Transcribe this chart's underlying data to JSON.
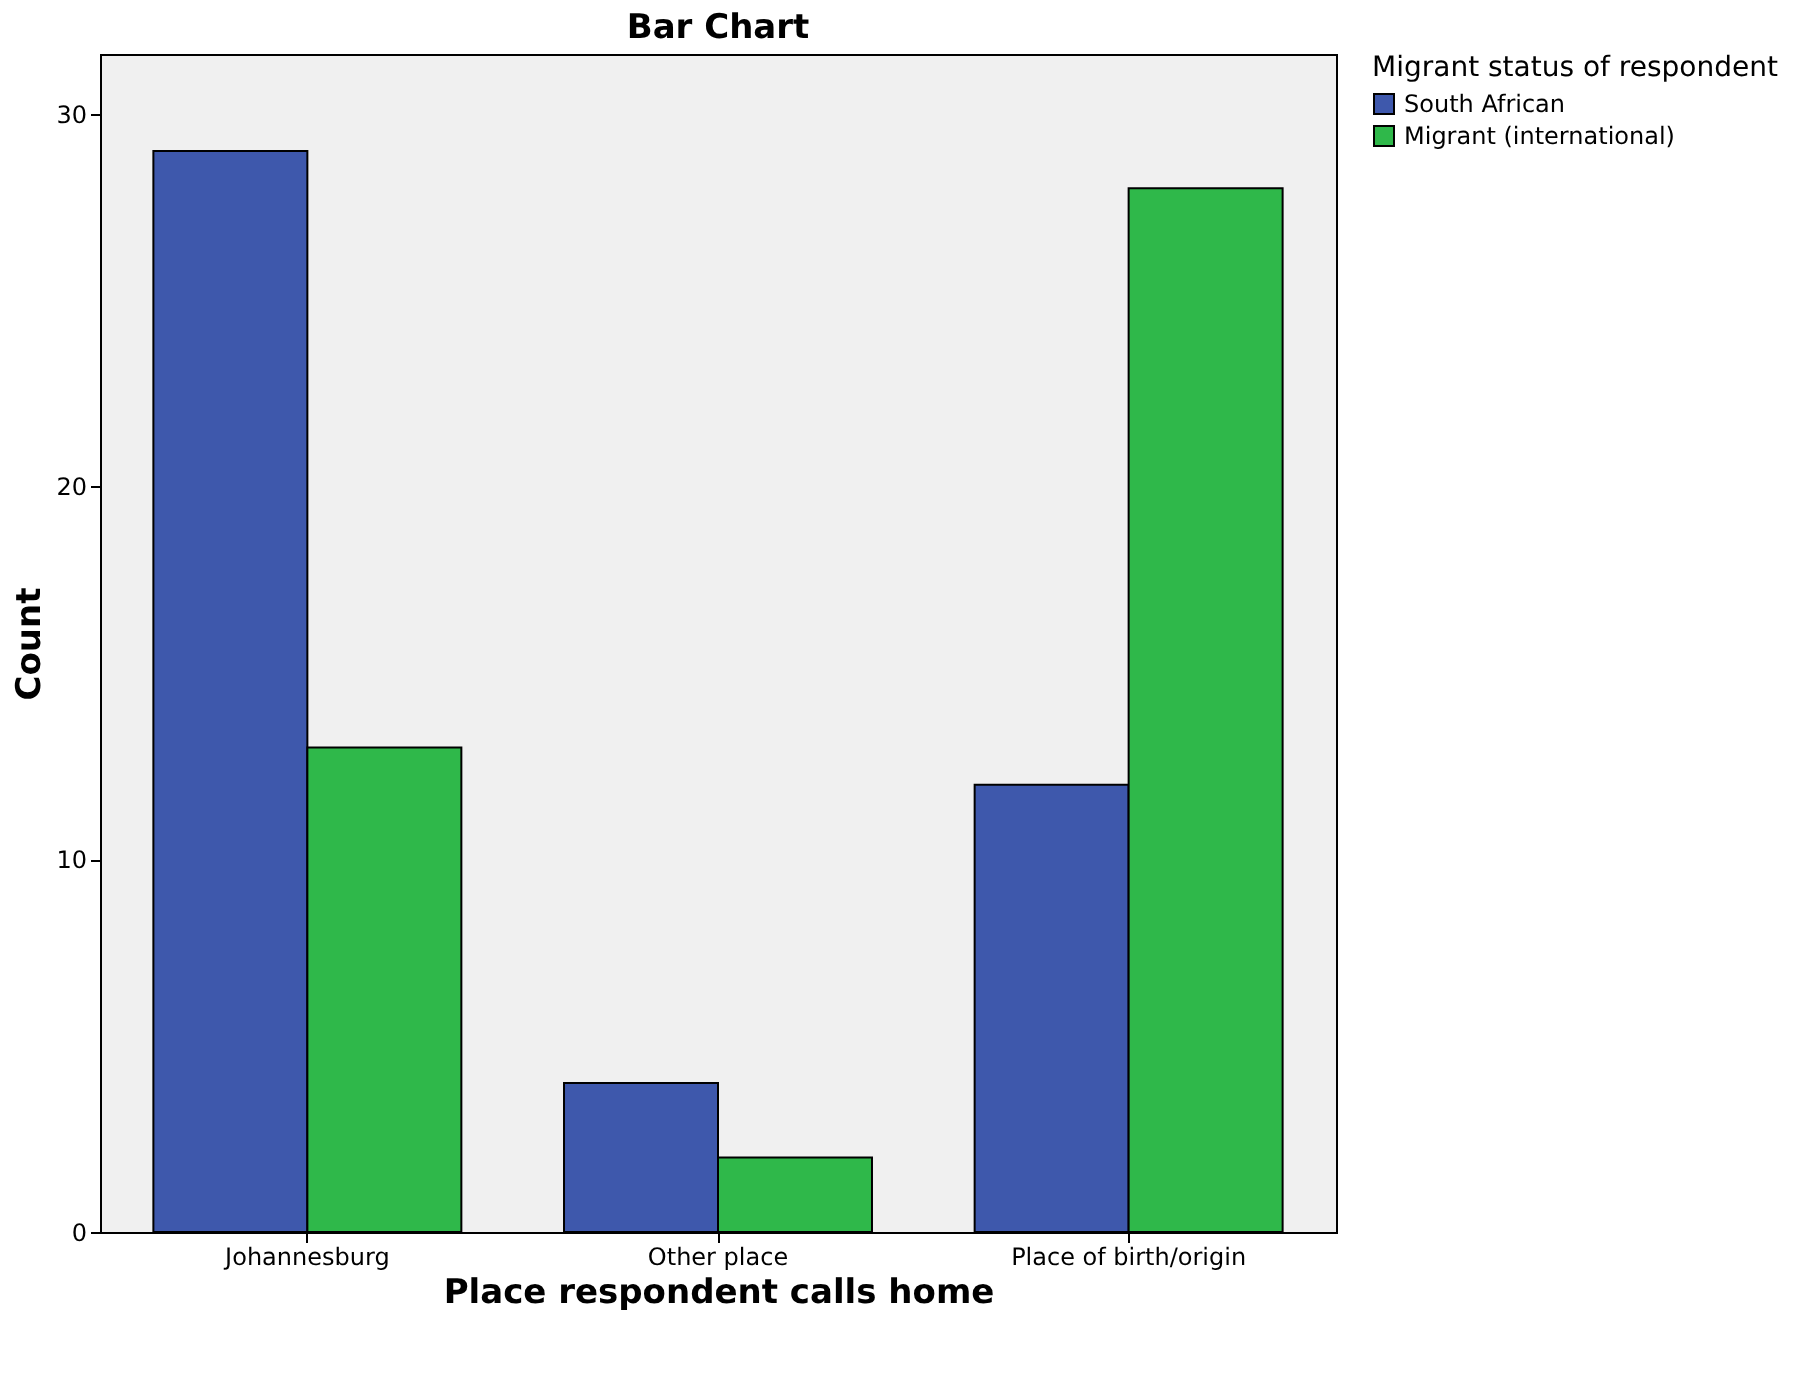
{
  "chart_data": {
    "type": "bar",
    "title": "Bar Chart",
    "xlabel": "Place respondent calls home",
    "ylabel": "Count",
    "legend_title": "Migrant status of respondent",
    "categories": [
      "Johannesburg",
      "Other place",
      "Place of birth/origin"
    ],
    "series": [
      {
        "name": "South African",
        "color": "#3e58ac",
        "values": [
          29,
          4,
          12
        ]
      },
      {
        "name": "Migrant (international)",
        "color": "#2fb84a",
        "values": [
          13,
          2,
          28
        ]
      }
    ],
    "ylim": [
      0,
      31.6
    ],
    "yticks": [
      0,
      10,
      20,
      30
    ],
    "grid": false,
    "legend": "right"
  }
}
